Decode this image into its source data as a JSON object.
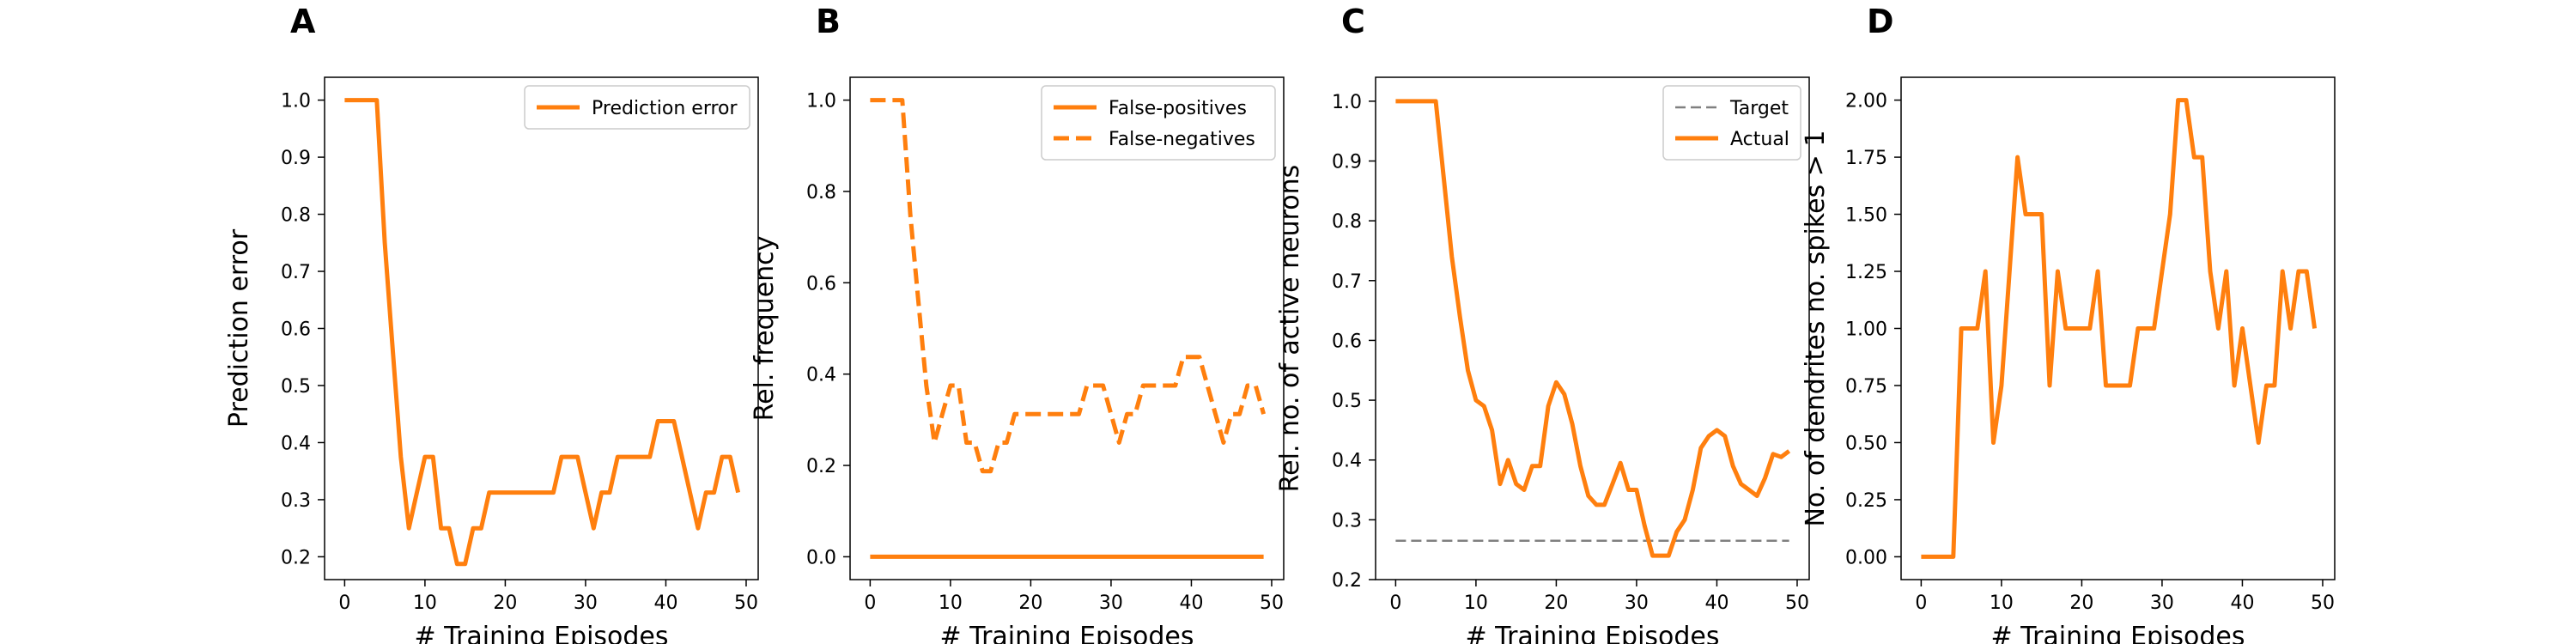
{
  "colors": {
    "series": "#ff7f0e",
    "target": "#808080",
    "axis": "#000000"
  },
  "chart_data": [
    {
      "panel": "A",
      "type": "line",
      "xlabel": "# Training Episodes",
      "ylabel": "Prediction error",
      "xlim": [
        -2.5,
        51.5
      ],
      "ylim": [
        0.16,
        1.04
      ],
      "xticks": [
        0,
        10,
        20,
        30,
        40,
        50
      ],
      "yticks": [
        0.2,
        0.3,
        0.4,
        0.5,
        0.6,
        0.7,
        0.8,
        0.9,
        1.0
      ],
      "ytick_labels": [
        "0.2",
        "0.3",
        "0.4",
        "0.5",
        "0.6",
        "0.7",
        "0.8",
        "0.9",
        "1.0"
      ],
      "legend": "upper-right",
      "series": [
        {
          "name": "Prediction error",
          "style": "solid",
          "legend": true,
          "x": [
            0,
            1,
            2,
            3,
            4,
            5,
            6,
            7,
            8,
            9,
            10,
            11,
            12,
            13,
            14,
            15,
            16,
            17,
            18,
            19,
            20,
            21,
            22,
            23,
            24,
            25,
            26,
            27,
            28,
            29,
            30,
            31,
            32,
            33,
            34,
            35,
            36,
            37,
            38,
            39,
            40,
            41,
            42,
            43,
            44,
            45,
            46,
            47,
            48,
            49
          ],
          "values": [
            1.0,
            1.0,
            1.0,
            1.0,
            1.0,
            0.75,
            0.56,
            0.375,
            0.25,
            0.3125,
            0.375,
            0.375,
            0.25,
            0.25,
            0.1875,
            0.1875,
            0.25,
            0.25,
            0.3125,
            0.3125,
            0.3125,
            0.3125,
            0.3125,
            0.3125,
            0.3125,
            0.3125,
            0.3125,
            0.375,
            0.375,
            0.375,
            0.3125,
            0.25,
            0.3125,
            0.3125,
            0.375,
            0.375,
            0.375,
            0.375,
            0.375,
            0.4375,
            0.4375,
            0.4375,
            0.375,
            0.3125,
            0.25,
            0.3125,
            0.3125,
            0.375,
            0.375,
            0.3125
          ]
        }
      ]
    },
    {
      "panel": "B",
      "type": "line",
      "xlabel": "# Training Episodes",
      "ylabel": "Rel. frequency",
      "xlim": [
        -2.5,
        51.5
      ],
      "ylim": [
        -0.05,
        1.05
      ],
      "xticks": [
        0,
        10,
        20,
        30,
        40,
        50
      ],
      "yticks": [
        0.0,
        0.2,
        0.4,
        0.6,
        0.8,
        1.0
      ],
      "ytick_labels": [
        "0.0",
        "0.2",
        "0.4",
        "0.6",
        "0.8",
        "1.0"
      ],
      "legend": "upper-right",
      "series": [
        {
          "name": "False-positives",
          "style": "solid",
          "legend": true,
          "x": [
            0,
            49
          ],
          "values": [
            0.0,
            0.0
          ]
        },
        {
          "name": "False-negatives",
          "style": "dashed",
          "legend": true,
          "x": [
            0,
            1,
            2,
            3,
            4,
            5,
            6,
            7,
            8,
            9,
            10,
            11,
            12,
            13,
            14,
            15,
            16,
            17,
            18,
            19,
            20,
            21,
            22,
            23,
            24,
            25,
            26,
            27,
            28,
            29,
            30,
            31,
            32,
            33,
            34,
            35,
            36,
            37,
            38,
            39,
            40,
            41,
            42,
            43,
            44,
            45,
            46,
            47,
            48,
            49
          ],
          "values": [
            1.0,
            1.0,
            1.0,
            1.0,
            1.0,
            0.75,
            0.56,
            0.375,
            0.25,
            0.3125,
            0.375,
            0.375,
            0.25,
            0.25,
            0.1875,
            0.1875,
            0.25,
            0.25,
            0.3125,
            0.3125,
            0.3125,
            0.3125,
            0.3125,
            0.3125,
            0.3125,
            0.3125,
            0.3125,
            0.375,
            0.375,
            0.375,
            0.3125,
            0.25,
            0.3125,
            0.3125,
            0.375,
            0.375,
            0.375,
            0.375,
            0.375,
            0.4375,
            0.4375,
            0.4375,
            0.375,
            0.3125,
            0.25,
            0.3125,
            0.3125,
            0.375,
            0.375,
            0.3125
          ]
        }
      ]
    },
    {
      "panel": "C",
      "type": "line",
      "xlabel": "# Training Episodes",
      "ylabel": "Rel. no. of active neurons",
      "xlim": [
        -2.5,
        51.5
      ],
      "ylim": [
        0.2,
        1.04
      ],
      "xticks": [
        0,
        10,
        20,
        30,
        40,
        50
      ],
      "yticks": [
        0.2,
        0.3,
        0.4,
        0.5,
        0.6,
        0.7,
        0.8,
        0.9,
        1.0
      ],
      "ytick_labels": [
        "0.2",
        "0.3",
        "0.4",
        "0.5",
        "0.6",
        "0.7",
        "0.8",
        "0.9",
        "1.0"
      ],
      "legend": "upper-right",
      "series": [
        {
          "name": "Target",
          "style": "dashed-thin",
          "legend": true,
          "x": [
            0,
            49
          ],
          "values": [
            0.265,
            0.265
          ]
        },
        {
          "name": "Actual",
          "style": "solid",
          "legend": true,
          "x": [
            0,
            1,
            2,
            3,
            4,
            5,
            6,
            7,
            8,
            9,
            10,
            11,
            12,
            13,
            14,
            15,
            16,
            17,
            18,
            19,
            20,
            21,
            22,
            23,
            24,
            25,
            26,
            27,
            28,
            29,
            30,
            31,
            32,
            33,
            34,
            35,
            36,
            37,
            38,
            39,
            40,
            41,
            42,
            43,
            44,
            45,
            46,
            47,
            48,
            49
          ],
          "values": [
            1.0,
            1.0,
            1.0,
            1.0,
            1.0,
            1.0,
            0.87,
            0.74,
            0.64,
            0.55,
            0.5,
            0.49,
            0.45,
            0.36,
            0.4,
            0.36,
            0.35,
            0.39,
            0.39,
            0.49,
            0.53,
            0.51,
            0.46,
            0.39,
            0.34,
            0.325,
            0.325,
            0.36,
            0.395,
            0.35,
            0.35,
            0.29,
            0.24,
            0.24,
            0.24,
            0.28,
            0.3,
            0.35,
            0.42,
            0.44,
            0.45,
            0.44,
            0.39,
            0.36,
            0.35,
            0.34,
            0.37,
            0.41,
            0.405,
            0.415
          ]
        }
      ]
    },
    {
      "panel": "D",
      "type": "line",
      "xlabel": "# Training Episodes",
      "ylabel": "No. of dendrites no. spikes > 1",
      "xlim": [
        -2.5,
        51.5
      ],
      "ylim": [
        -0.1,
        2.1
      ],
      "xticks": [
        0,
        10,
        20,
        30,
        40,
        50
      ],
      "yticks": [
        0.0,
        0.25,
        0.5,
        0.75,
        1.0,
        1.25,
        1.5,
        1.75,
        2.0
      ],
      "ytick_labels": [
        "0.00",
        "0.25",
        "0.50",
        "0.75",
        "1.00",
        "1.25",
        "1.50",
        "1.75",
        "2.00"
      ],
      "legend": "none",
      "series": [
        {
          "name": "",
          "style": "solid",
          "legend": false,
          "x": [
            0,
            1,
            2,
            3,
            4,
            5,
            6,
            7,
            8,
            9,
            10,
            11,
            12,
            13,
            14,
            15,
            16,
            17,
            18,
            19,
            20,
            21,
            22,
            23,
            24,
            25,
            26,
            27,
            28,
            29,
            30,
            31,
            32,
            33,
            34,
            35,
            36,
            37,
            38,
            39,
            40,
            41,
            42,
            43,
            44,
            45,
            46,
            47,
            48,
            49
          ],
          "values": [
            0,
            0,
            0,
            0,
            0,
            1.0,
            1.0,
            1.0,
            1.25,
            0.5,
            0.75,
            1.25,
            1.75,
            1.5,
            1.5,
            1.5,
            0.75,
            1.25,
            1.0,
            1.0,
            1.0,
            1.0,
            1.25,
            0.75,
            0.75,
            0.75,
            0.75,
            1.0,
            1.0,
            1.0,
            1.25,
            1.5,
            2.0,
            2.0,
            1.75,
            1.75,
            1.25,
            1.0,
            1.25,
            0.75,
            1.0,
            0.75,
            0.5,
            0.75,
            0.75,
            1.25,
            1.0,
            1.25,
            1.25,
            1.0
          ]
        }
      ]
    }
  ]
}
